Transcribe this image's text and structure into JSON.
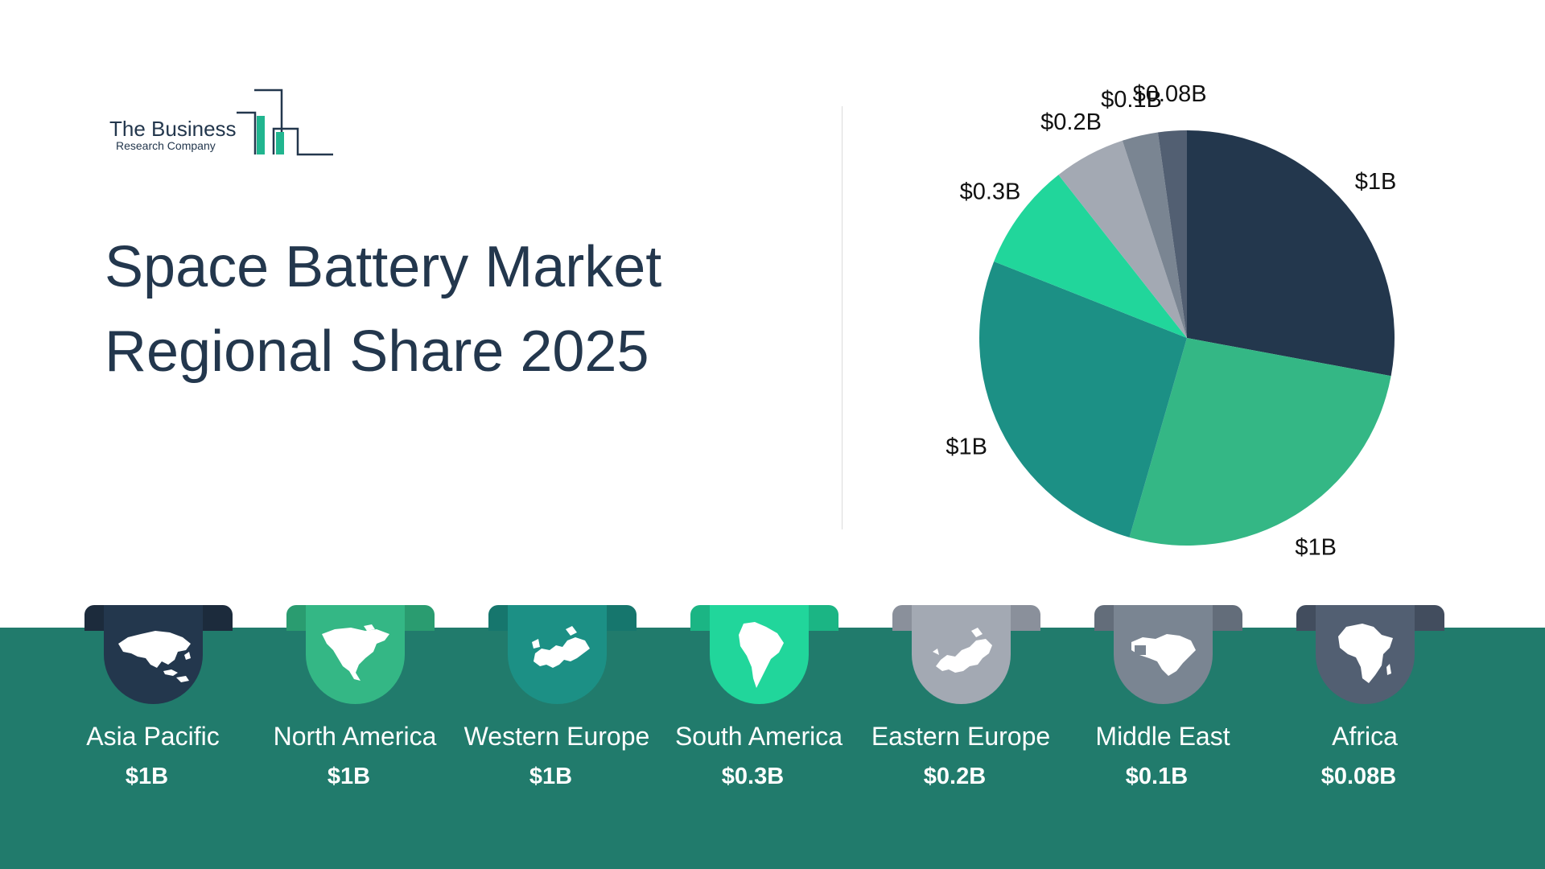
{
  "logo": {
    "line1": "The Business",
    "line2": "Research Company",
    "icon": "building-bars-icon"
  },
  "title": {
    "line1": "Space Battery Market",
    "line2": "Regional Share 2025"
  },
  "colors": {
    "band": "#217b6c",
    "text": "#23374d"
  },
  "chart_data": {
    "type": "pie",
    "slices": [
      {
        "label": "Asia Pacific",
        "value_label": "$1B",
        "value": 1.0,
        "color": "#23374d"
      },
      {
        "label": "North America",
        "value_label": "$1B",
        "value": 0.95,
        "color": "#34b785"
      },
      {
        "label": "Western Europe",
        "value_label": "$1B",
        "value": 0.95,
        "color": "#1c9085"
      },
      {
        "label": "South America",
        "value_label": "$0.3B",
        "value": 0.3,
        "color": "#21d69b"
      },
      {
        "label": "Eastern Europe",
        "value_label": "$0.2B",
        "value": 0.2,
        "color": "#a3a9b3"
      },
      {
        "label": "Middle East",
        "value_label": "$0.1B",
        "value": 0.1,
        "color": "#7a8592"
      },
      {
        "label": "Africa",
        "value_label": "$0.08B",
        "value": 0.08,
        "color": "#525f72"
      }
    ]
  },
  "regions": [
    {
      "name": "Asia Pacific",
      "value": "$1B",
      "icon": "asia-map-icon",
      "color": "#23374d",
      "tab_color": "#1c2b3c"
    },
    {
      "name": "North America",
      "value": "$1B",
      "icon": "north-america-map-icon",
      "color": "#34b785",
      "tab_color": "#2a9c70"
    },
    {
      "name": "Western Europe",
      "value": "$1B",
      "icon": "western-europe-map-icon",
      "color": "#1c9085",
      "tab_color": "#16766d"
    },
    {
      "name": "South America",
      "value": "$0.3B",
      "icon": "south-america-map-icon",
      "color": "#21d69b",
      "tab_color": "#1bb584"
    },
    {
      "name": "Eastern Europe",
      "value": "$0.2B",
      "icon": "eastern-europe-map-icon",
      "color": "#a3a9b3",
      "tab_color": "#8a909b"
    },
    {
      "name": "Middle East",
      "value": "$0.1B",
      "icon": "middle-east-map-icon",
      "color": "#7a8592",
      "tab_color": "#636d7a"
    },
    {
      "name": "Africa",
      "value": "$0.08B",
      "icon": "africa-map-icon",
      "color": "#525f72",
      "tab_color": "#424d5e"
    }
  ]
}
